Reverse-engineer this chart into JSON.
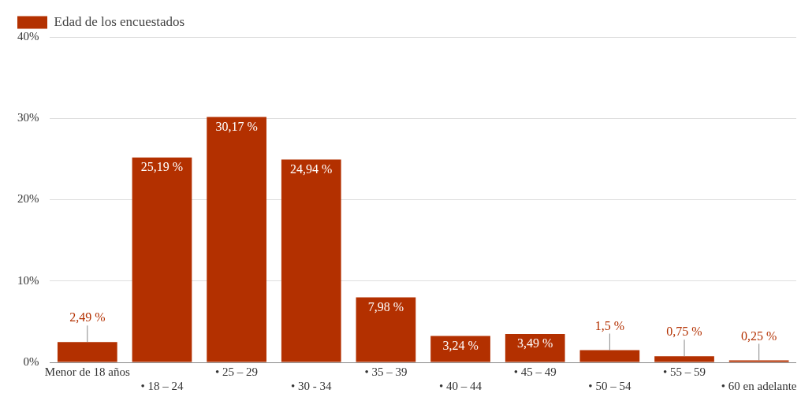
{
  "chart_data": {
    "type": "bar",
    "categories": [
      "Menor de 18 años",
      "• 18 – 24",
      "• 25 – 29",
      "• 30 - 34",
      "• 35 – 39",
      "• 40 – 44",
      "• 45 – 49",
      "• 50 – 54",
      "• 55 – 59",
      "• 60 en adelante"
    ],
    "series": [
      {
        "name": "Edad de los encuestados",
        "color": "#b33000",
        "values": [
          2.49,
          25.19,
          30.17,
          24.94,
          7.98,
          3.24,
          3.49,
          1.5,
          0.75,
          0.25
        ],
        "value_labels": [
          "2,49 %",
          "25,19 %",
          "30,17 %",
          "24,94 %",
          "7,98 %",
          "3,24 %",
          "3,49 %",
          "1,5 %",
          "0,75 %",
          "0,25 %"
        ]
      }
    ],
    "ylim": [
      0,
      40
    ],
    "yticks": [
      {
        "value": 0,
        "label": "0%"
      },
      {
        "value": 10,
        "label": "10%"
      },
      {
        "value": 20,
        "label": "20%"
      },
      {
        "value": 30,
        "label": "30%"
      },
      {
        "value": 40,
        "label": "40%"
      }
    ],
    "grid": "y",
    "legend": "top left"
  }
}
